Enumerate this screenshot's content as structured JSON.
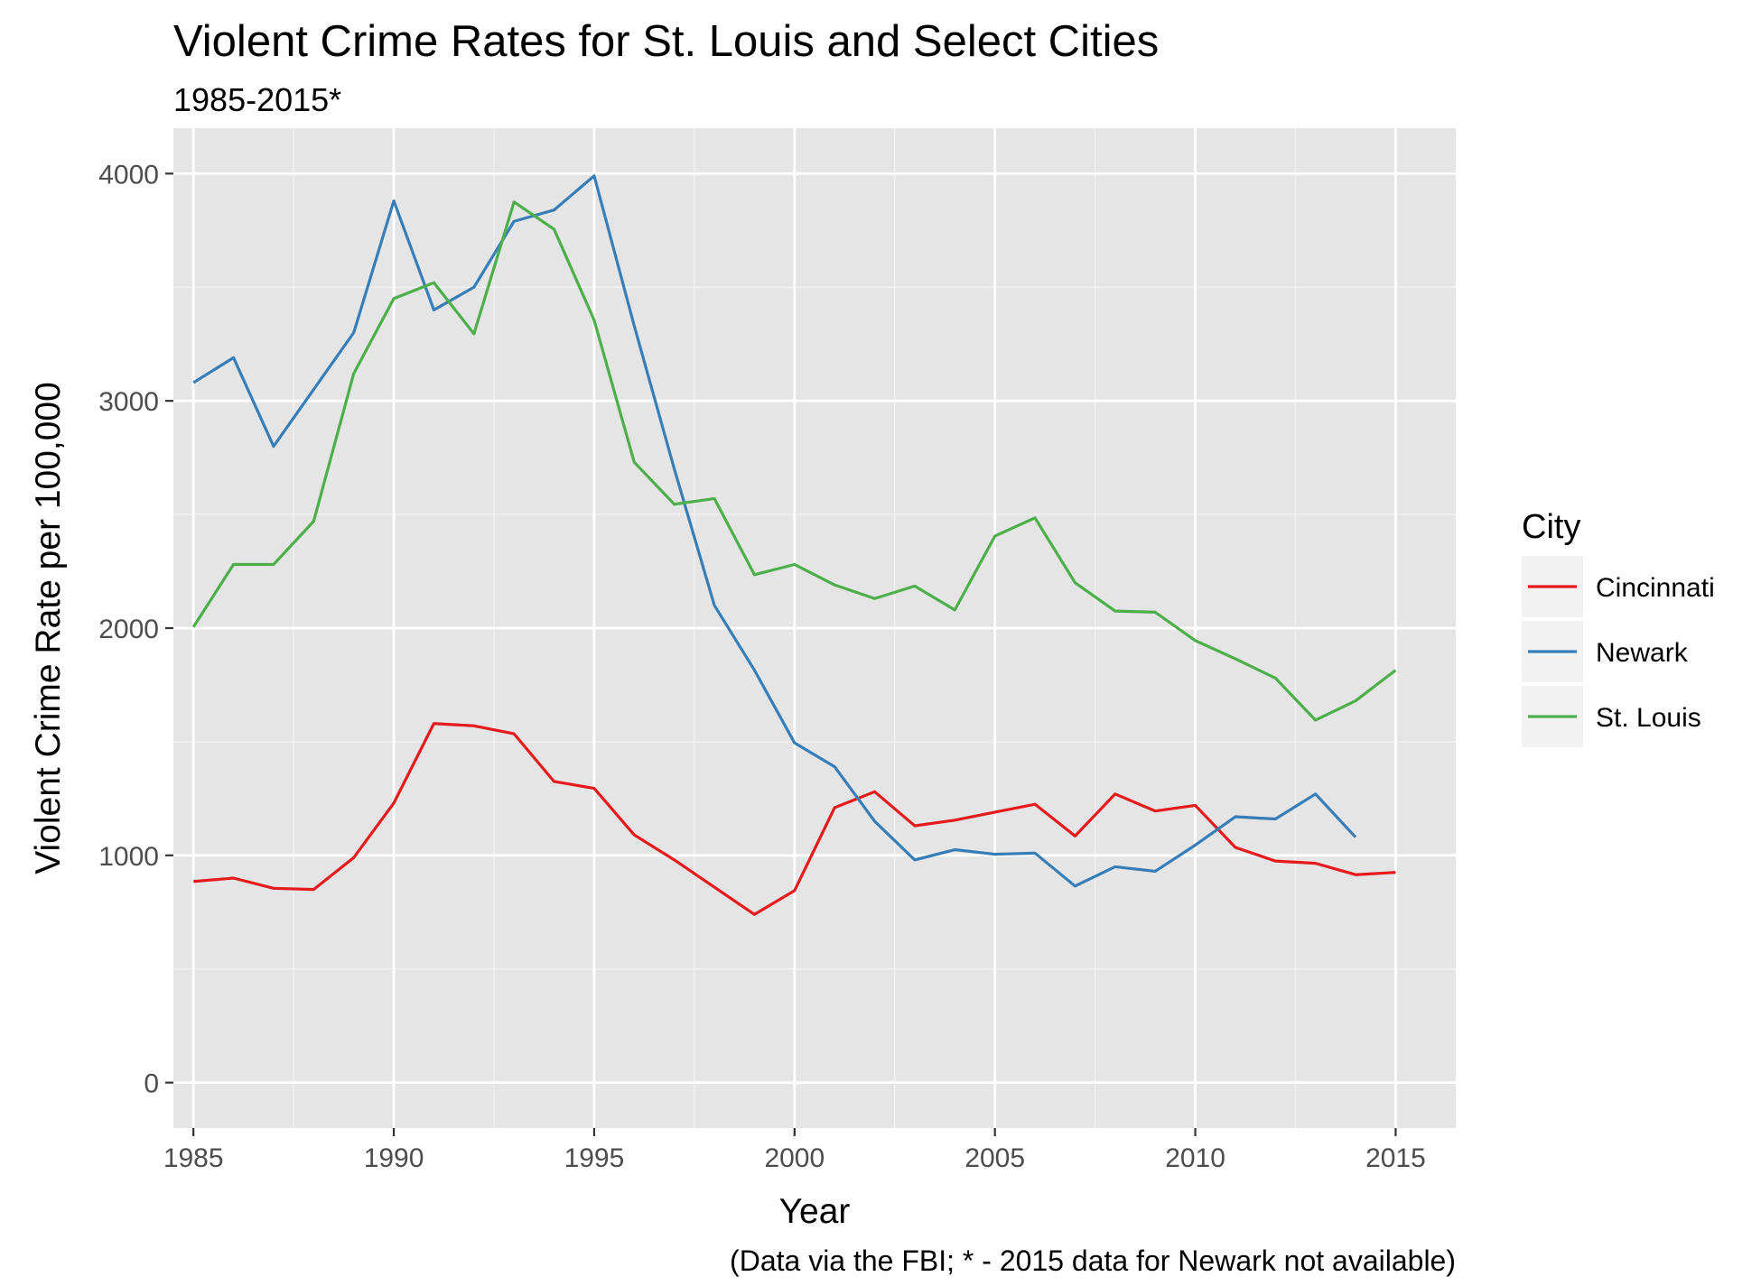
{
  "chart_data": {
    "type": "line",
    "title": "Violent Crime Rates for St. Louis and Select Cities",
    "subtitle": "1985-2015*",
    "xlabel": "Year",
    "ylabel": "Violent Crime Rate per 100,000",
    "caption": "(Data via the FBI; * - 2015 data for Newark not available)",
    "xlim": [
      1984.5,
      2016.5
    ],
    "ylim": [
      -200,
      4200
    ],
    "x_ticks": [
      1985,
      1990,
      1995,
      2000,
      2005,
      2010,
      2015
    ],
    "y_ticks": [
      0,
      1000,
      2000,
      3000,
      4000
    ],
    "x_tick_labels": [
      "1985",
      "1990",
      "1995",
      "2000",
      "2005",
      "2010",
      "2015"
    ],
    "y_tick_labels": [
      "0",
      "1000",
      "2000",
      "3000",
      "4000"
    ],
    "grid": true,
    "panel_background": "#e5e5e5",
    "legend": {
      "title": "City",
      "position": "right"
    },
    "series": [
      {
        "name": "Cincinnati",
        "color": "#e41a1c",
        "x": [
          1985,
          1986,
          1987,
          1988,
          1989,
          1990,
          1991,
          1992,
          1993,
          1994,
          1995,
          1996,
          1997,
          1998,
          1999,
          2000,
          2001,
          2002,
          2003,
          2004,
          2005,
          2006,
          2007,
          2008,
          2009,
          2010,
          2011,
          2012,
          2013,
          2014,
          2015
        ],
        "values": [
          885,
          900,
          855,
          850,
          990,
          1230,
          1580,
          1570,
          1535,
          1325,
          1295,
          1090,
          980,
          860,
          740,
          845,
          1210,
          1280,
          1130,
          1155,
          1190,
          1225,
          1085,
          1270,
          1195,
          1220,
          1035,
          975,
          965,
          915,
          925
        ]
      },
      {
        "name": "Newark",
        "color": "#377eb8",
        "x": [
          1985,
          1986,
          1987,
          1988,
          1989,
          1990,
          1991,
          1992,
          1993,
          1994,
          1995,
          1996,
          1997,
          1998,
          1999,
          2000,
          2001,
          2002,
          2003,
          2004,
          2005,
          2006,
          2007,
          2008,
          2009,
          2010,
          2011,
          2012,
          2013,
          2014
        ],
        "values": [
          3080,
          3190,
          2800,
          3050,
          3300,
          3880,
          3400,
          3500,
          3790,
          3840,
          3990,
          3330,
          2700,
          2100,
          1815,
          1495,
          1390,
          1150,
          980,
          1025,
          1005,
          1010,
          865,
          950,
          930,
          1045,
          1170,
          1160,
          1270,
          1080
        ]
      },
      {
        "name": "St. Louis",
        "color": "#4daf4a",
        "x": [
          1985,
          1986,
          1987,
          1988,
          1989,
          1990,
          1991,
          1992,
          1993,
          1994,
          1995,
          1996,
          1997,
          1998,
          1999,
          2000,
          2001,
          2002,
          2003,
          2004,
          2005,
          2006,
          2007,
          2008,
          2009,
          2010,
          2011,
          2012,
          2013,
          2014,
          2015
        ],
        "values": [
          2005,
          2280,
          2280,
          2470,
          3120,
          3450,
          3520,
          3295,
          3875,
          3755,
          3355,
          2730,
          2545,
          2570,
          2235,
          2280,
          2190,
          2130,
          2185,
          2080,
          2405,
          2485,
          2200,
          2075,
          2070,
          1945,
          1865,
          1780,
          1595,
          1680,
          1815
        ]
      }
    ]
  }
}
